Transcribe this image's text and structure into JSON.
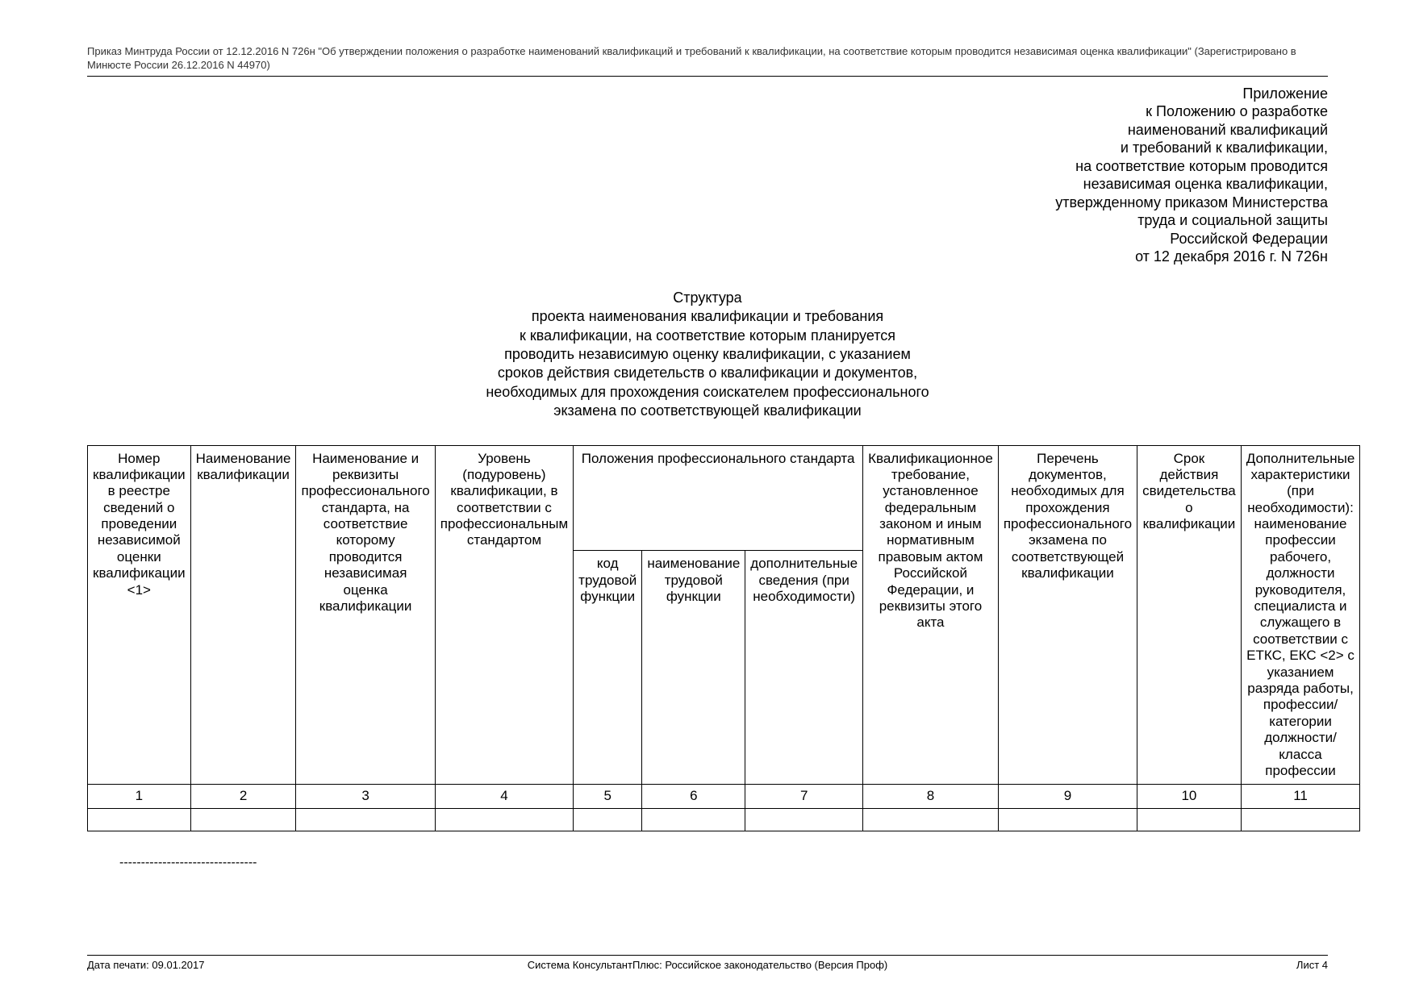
{
  "header": "Приказ Минтруда России от 12.12.2016 N 726н \"Об утверждении положения о разработке наименований квалификаций и требований к квалификации, на соответствие которым проводится независимая оценка квалификации\" (Зарегистрировано в Минюсте России 26.12.2016 N 44970)",
  "appendix": {
    "l1": "Приложение",
    "l2": "к Положению о разработке",
    "l3": "наименований квалификаций",
    "l4": "и требований к квалификации,",
    "l5": "на соответствие которым проводится",
    "l6": "независимая оценка квалификации,",
    "l7": "утвержденному приказом Министерства",
    "l8": "труда и социальной защиты",
    "l9": "Российской Федерации",
    "l10": "от 12 декабря 2016 г. N 726н"
  },
  "title": {
    "l1": "Структура",
    "l2": "проекта наименования квалификации и требования",
    "l3": "к квалификации, на соответствие которым планируется",
    "l4": "проводить независимую оценку квалификации, с указанием",
    "l5": "сроков действия свидетельств о квалификации и документов,",
    "l6": "необходимых для прохождения соискателем профессионального",
    "l7": "экзамена по соответствующей квалификации"
  },
  "table": {
    "h1": "Номер квалификации в реестре сведений о проведении независимой оценки квалификации <1>",
    "h2": "Наименование квалификации",
    "h3": "Наименование и реквизиты профессионального стандарта, на соответствие которому проводится независимая оценка квалификации",
    "h4": "Уровень (подуровень) квалификации, в соответствии с профессиональным стандартом",
    "h5": "Положения профессионального стандарта",
    "h5a": "код трудовой функции",
    "h5b": "наименование трудовой функции",
    "h5c": "дополнительные сведения (при необходимости)",
    "h6": "Квалификационное требование, установленное федеральным законом и иным нормативным правовым актом Российской Федерации, и реквизиты этого акта",
    "h7": "Перечень документов, необходимых для прохождения профессионального экзамена по соответствующей квалификации",
    "h8": "Срок действия свидетельства о квалификации",
    "h9": "Дополнительные характеристики (при необходимости): наименование профессии рабочего, должности руководителя, специалиста и служащего в соответствии с ЕТКС, ЕКС <2> с указанием разряда работы, профессии/категории должности/класса профессии",
    "n1": "1",
    "n2": "2",
    "n3": "3",
    "n4": "4",
    "n5": "5",
    "n6": "6",
    "n7": "7",
    "n8": "8",
    "n9": "9",
    "n10": "10",
    "n11": "11"
  },
  "dashes": "--------------------------------",
  "footer": {
    "left": "Дата печати: 09.01.2017",
    "center": "Система КонсультантПлюс: Российское законодательство (Версия Проф)",
    "right": "Лист 4"
  },
  "colwidths": {
    "c1": "87",
    "c2": "62",
    "c3": "110",
    "c4": "87",
    "c5": "58",
    "c6": "66",
    "c7": "70",
    "c8": "120",
    "c9": "100",
    "c10": "70",
    "c11": "200"
  }
}
